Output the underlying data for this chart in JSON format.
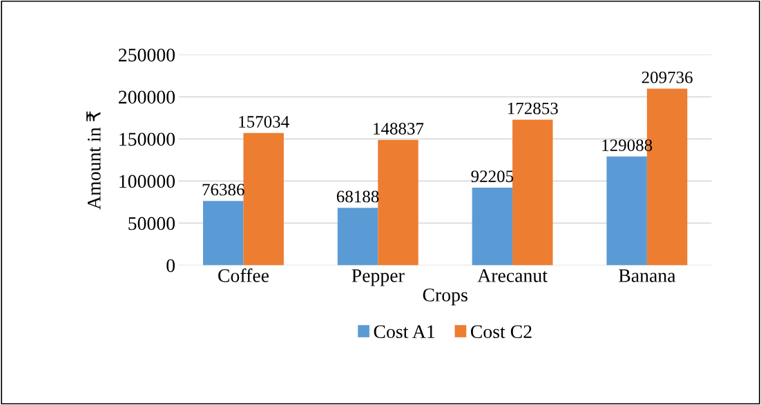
{
  "chart_data": {
    "type": "bar",
    "xlabel": "Crops",
    "ylabel": "Amount in ₹",
    "categories": [
      "Coffee",
      "Pepper",
      "Arecanut",
      "Banana"
    ],
    "series": [
      {
        "name": "Cost A1",
        "color": "#5b9bd5",
        "values": [
          76386,
          68188,
          92205,
          129088
        ]
      },
      {
        "name": "Cost C2",
        "color": "#ed7d31",
        "values": [
          157034,
          148837,
          172853,
          209736
        ]
      }
    ],
    "ylim": [
      0,
      250000
    ],
    "yticks": [
      0,
      50000,
      100000,
      150000,
      200000,
      250000
    ],
    "grid": "y",
    "legend": "bottom",
    "data_labels": true
  }
}
